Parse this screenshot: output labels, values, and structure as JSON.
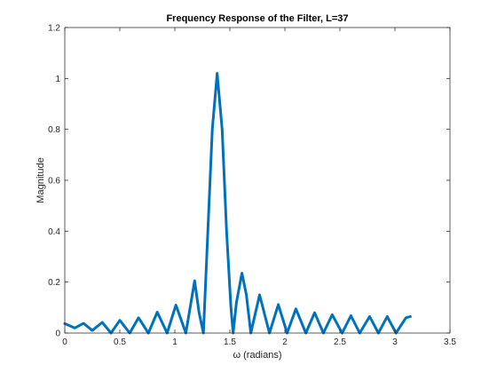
{
  "chart_data": {
    "type": "line",
    "title": "Frequency Response of the Filter, L=37",
    "xlabel": "ω (radians)",
    "ylabel": "Magnitude",
    "xlim": [
      0,
      3.5
    ],
    "ylim": [
      0,
      1.2
    ],
    "xticks": [
      0,
      0.5,
      1,
      1.5,
      2,
      2.5,
      3,
      3.5
    ],
    "xtick_labels": [
      "0",
      "0.5",
      "1",
      "1.5",
      "2",
      "2.5",
      "3",
      "3.5"
    ],
    "yticks": [
      0,
      0.2,
      0.4,
      0.6,
      0.8,
      1,
      1.2
    ],
    "ytick_labels": [
      "0",
      "0.2",
      "0.4",
      "0.6",
      "0.8",
      "1",
      "1.2"
    ],
    "grid": false,
    "line_color": "#0072bd",
    "series": [
      {
        "points": [
          [
            0,
            0.037
          ],
          [
            0.09,
            0.02
          ],
          [
            0.17,
            0.038
          ],
          [
            0.25,
            0.01
          ],
          [
            0.34,
            0.042
          ],
          [
            0.42,
            0.0
          ],
          [
            0.5,
            0.05
          ],
          [
            0.59,
            0.0
          ],
          [
            0.67,
            0.06
          ],
          [
            0.76,
            0.0
          ],
          [
            0.84,
            0.082
          ],
          [
            0.93,
            0.0
          ],
          [
            1.01,
            0.11
          ],
          [
            1.1,
            0.0
          ],
          [
            1.18,
            0.205
          ],
          [
            1.22,
            0.08
          ],
          [
            1.26,
            0.0
          ],
          [
            1.3,
            0.4
          ],
          [
            1.34,
            0.8
          ],
          [
            1.385,
            1.02
          ],
          [
            1.43,
            0.8
          ],
          [
            1.47,
            0.4
          ],
          [
            1.51,
            0.1
          ],
          [
            1.53,
            0.0
          ],
          [
            1.56,
            0.12
          ],
          [
            1.61,
            0.235
          ],
          [
            1.65,
            0.15
          ],
          [
            1.69,
            0.0
          ],
          [
            1.77,
            0.15
          ],
          [
            1.86,
            0.0
          ],
          [
            1.94,
            0.112
          ],
          [
            2.02,
            0.0
          ],
          [
            2.1,
            0.095
          ],
          [
            2.19,
            0.0
          ],
          [
            2.27,
            0.08
          ],
          [
            2.35,
            0.0
          ],
          [
            2.43,
            0.072
          ],
          [
            2.52,
            0.0
          ],
          [
            2.6,
            0.068
          ],
          [
            2.68,
            0.0
          ],
          [
            2.77,
            0.065
          ],
          [
            2.85,
            0.0
          ],
          [
            2.93,
            0.065
          ],
          [
            3.01,
            0.0
          ],
          [
            3.1,
            0.06
          ],
          [
            3.14,
            0.065
          ]
        ]
      }
    ]
  }
}
